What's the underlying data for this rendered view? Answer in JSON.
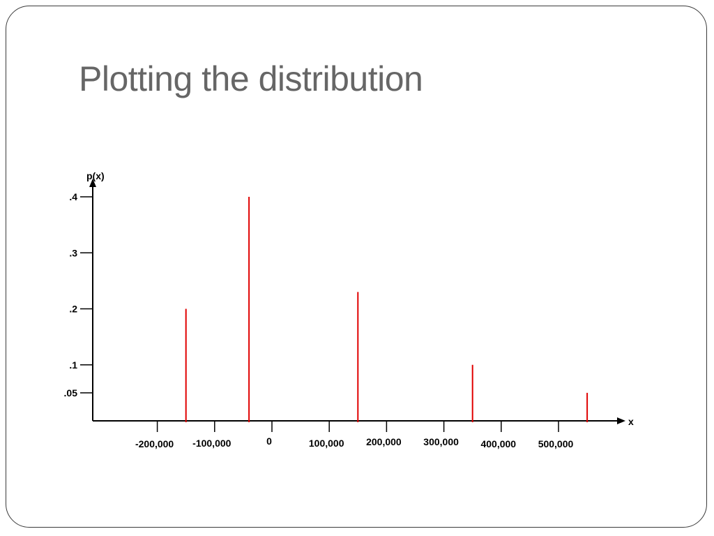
{
  "slide": {
    "title": "Plotting the distribution"
  },
  "chart_data": {
    "type": "bar",
    "xlabel": "x",
    "ylabel": "p(x)",
    "x_ticks": [
      -200000,
      -100000,
      0,
      100000,
      200000,
      300000,
      400000,
      500000
    ],
    "x_tick_labels": [
      "-200,000",
      "-100,000",
      "0",
      "100,000",
      "200,000",
      "300,000",
      "400,000",
      "500,000"
    ],
    "y_ticks": [
      0.05,
      0.1,
      0.2,
      0.3,
      0.4
    ],
    "y_tick_labels": [
      ".05",
      ".1",
      ".2",
      ".3",
      ".4"
    ],
    "x": [
      -150000,
      -40000,
      150000,
      350000,
      550000
    ],
    "values": [
      0.2,
      0.4,
      0.23,
      0.1,
      0.05
    ],
    "xlim": [
      -300000,
      600000
    ],
    "ylim": [
      0,
      0.4
    ],
    "color": "#e00000",
    "axis_color": "#000000",
    "grid": false
  }
}
